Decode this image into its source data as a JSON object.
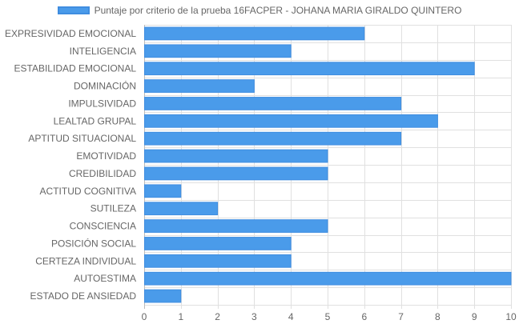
{
  "chart_data": {
    "type": "bar",
    "orientation": "horizontal",
    "categories": [
      "EXPRESIVIDAD EMOCIONAL",
      "INTELIGENCIA",
      "ESTABILIDAD EMOCIONAL",
      "DOMINACIÓN",
      "IMPULSIVIDAD",
      "LEALTAD GRUPAL",
      "APTITUD SITUACIONAL",
      "EMOTIVIDAD",
      "CREDIBILIDAD",
      "ACTITUD COGNITIVA",
      "SUTILEZA",
      "CONSCIENCIA",
      "POSICIÓN SOCIAL",
      "CERTEZA INDIVIDUAL",
      "AUTOESTIMA",
      "ESTADO DE ANSIEDAD"
    ],
    "series": [
      {
        "name": "Puntaje por criterio de la prueba 16FACPER - JOHANA MARIA GIRALDO QUINTERO",
        "values": [
          6,
          4,
          9,
          3,
          7,
          8,
          7,
          5,
          5,
          1,
          2,
          5,
          4,
          4,
          10,
          1
        ],
        "color": "#4A9BEA"
      }
    ],
    "xlim": [
      0,
      10
    ],
    "xticks": [
      "0",
      "1",
      "2",
      "3",
      "4",
      "5",
      "6",
      "7",
      "8",
      "9",
      "10"
    ],
    "grid": true,
    "legend": "top-center"
  },
  "colors": {
    "bar": "#4A9BEA",
    "bar_border": "#3F8DE0",
    "grid": "#E0E0E0",
    "axis": "#BBBBBB",
    "text": "#666666"
  }
}
